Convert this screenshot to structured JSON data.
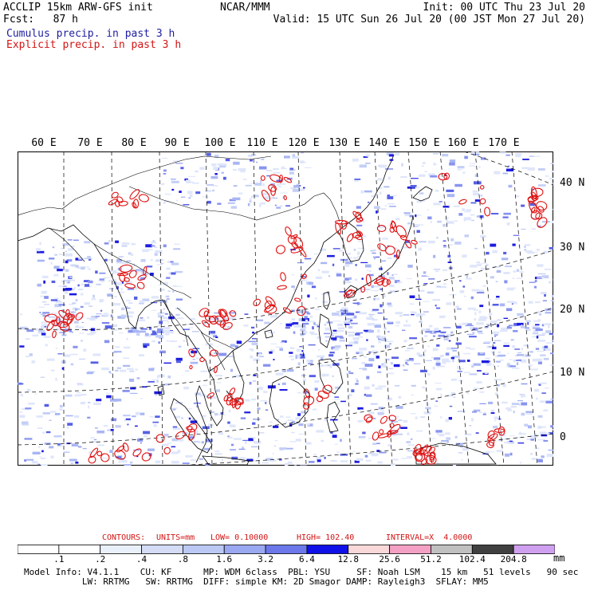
{
  "header": {
    "left_line1": "ACCLIP 15km ARW-GFS init",
    "left_line2": "Fcst:   87 h",
    "center": "NCAR/MMM",
    "right_line1": "Init: 00 UTC Thu 23 Jul 20",
    "right_line2": "Valid: 15 UTC Sun 26 Jul 20 (00 JST Mon 27 Jul 20)",
    "legend_cumulus": "Cumulus precip. in past 3 h",
    "legend_explicit": "Explicit precip. in past 3 h"
  },
  "lon_labels": [
    "60 E",
    "70 E",
    "80 E",
    "90 E",
    "100 E",
    "110 E",
    "120 E",
    "130 E",
    "140 E",
    "150 E",
    "160 E",
    "170 E"
  ],
  "lat_labels": [
    "40 N",
    "30 N",
    "20 N",
    "10 N",
    "0"
  ],
  "contours": {
    "label": "CONTOURS:",
    "units": "UNITS=mm",
    "low": "LOW= 0.10000",
    "high": "HIGH= 102.40",
    "interval": "INTERVAL=X  4.0000"
  },
  "colorbar": {
    "labels": [
      ".1",
      ".2",
      ".4",
      ".8",
      "1.6",
      "3.2",
      "6.4",
      "12.8",
      "25.6",
      "51.2",
      "102.4",
      "204.8"
    ],
    "unit": "mm",
    "colors": [
      "#ffffff",
      "#ffffff",
      "#eaf0fa",
      "#d4dcf6",
      "#bcc8f4",
      "#9aa8f2",
      "#6c78ea",
      "#1010e8",
      "#f8d8d8",
      "#f4a0c4",
      "#c0c0c0",
      "#404040",
      "#d0a0f0"
    ]
  },
  "model_info": {
    "line1": "Model Info: V4.1.1    CU: KF      MP: WDM 6class  PBL: YSU     SF: Noah LSM    15 km   51 levels   90 sec",
    "line2": "           LW: RRTMG   SW: RRTMG  DIFF: simple KM: 2D Smagor DAMP: Rayleigh3  SFLAY: MM5"
  },
  "colors": {
    "cumulus": "#1e1ea0",
    "explicit": "#d41414",
    "contour_red": "#e01010"
  }
}
